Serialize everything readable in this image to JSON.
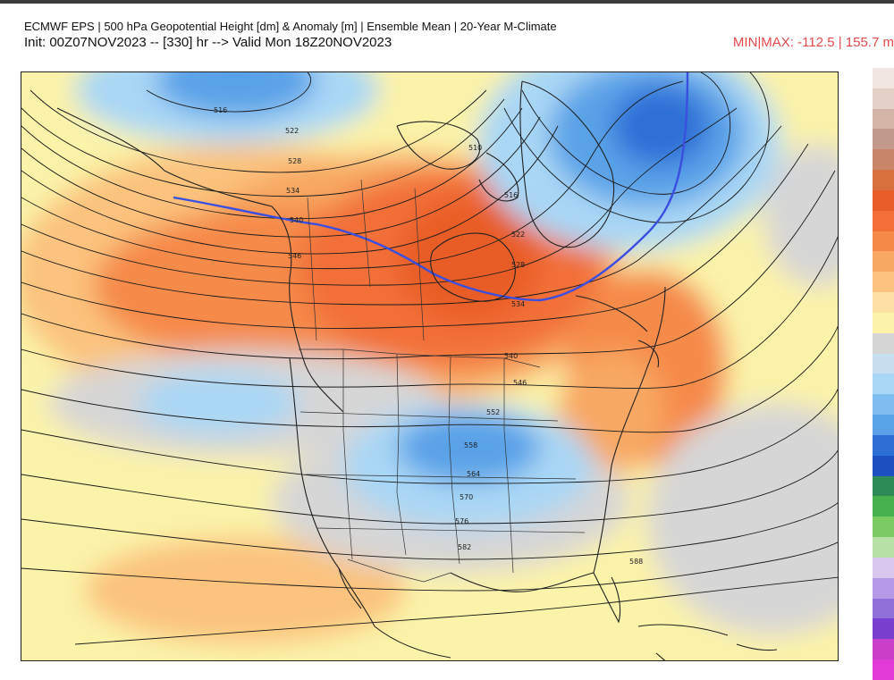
{
  "header": {
    "title": "ECMWF EPS | 500 hPa Geopotential Height [dm] & Anomaly [m] | Ensemble Mean | 20-Year M-Climate",
    "init": "Init: 00Z07NOV2023 -- [330] hr --> Valid Mon 18Z20NOV2023",
    "minmax": "MIN|MAX: -112.5 | 155.7 m"
  },
  "map": {
    "region": "North America",
    "contour_labels": [
      "516",
      "522",
      "528",
      "534",
      "540",
      "546",
      "552",
      "558",
      "564",
      "570",
      "576",
      "582",
      "588",
      "510",
      "516",
      "522",
      "528",
      "534",
      "540",
      "546"
    ],
    "highlighted_contour": "540",
    "colors": {
      "positive_strong": "#e2531f",
      "positive": "#f58a48",
      "positive_weak": "#fbc37d",
      "neutral": "#fbf3a9",
      "near_zero": "#d6d6d6",
      "negative_weak": "#a9d7f5",
      "negative": "#5aa2e8",
      "negative_strong": "#2e6fd6",
      "highlight_contour": "#3a4fe0"
    }
  },
  "colorbar": {
    "colors": [
      "#f2e6e3",
      "#e5d0c8",
      "#d3b5a8",
      "#c29a8b",
      "#c98568",
      "#d86f3f",
      "#e85d28",
      "#f27038",
      "#f58a48",
      "#f8a862",
      "#fbc37d",
      "#fde0a4",
      "#fbf3a9",
      "#d6d6d6",
      "#c8dff0",
      "#a9d7f5",
      "#7fbcf0",
      "#5aa2e8",
      "#2e6fd6",
      "#1c4fbf",
      "#2e8b57",
      "#45b04d",
      "#7acb61",
      "#b6e0a4",
      "#d8c8ee",
      "#b49ae6",
      "#9070d8",
      "#7a3fcf",
      "#c93fc9",
      "#e03bd6"
    ]
  }
}
